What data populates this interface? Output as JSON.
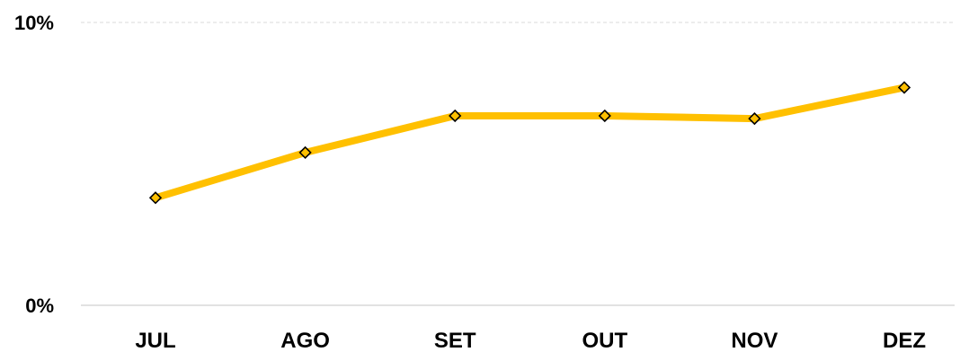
{
  "chart_data": {
    "type": "line",
    "categories": [
      "JUL",
      "AGO",
      "SET",
      "OUT",
      "NOV",
      "DEZ"
    ],
    "series": [
      {
        "values": [
          3.8,
          5.4,
          6.7,
          6.7,
          6.6,
          7.7
        ]
      }
    ],
    "ylim": [
      0,
      10
    ],
    "y_ticks": [
      "0%",
      "10%"
    ],
    "grid": "horizontal dashed at top, solid baseline",
    "legend": "none"
  },
  "colors": {
    "line": "#ffc000",
    "marker_fill": "#ffc000",
    "marker_stroke": "#000000",
    "gridline": "#d9d9d9",
    "text": "#000000"
  }
}
